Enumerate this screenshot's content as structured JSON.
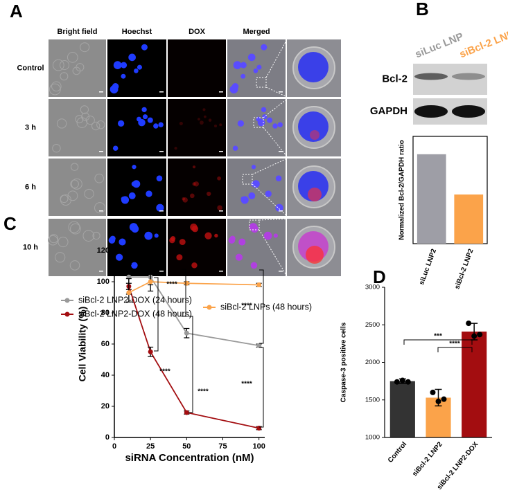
{
  "figure": {
    "panel_labels": [
      "A",
      "B",
      "C",
      "D"
    ]
  },
  "microscopy": {
    "columns": [
      "Bright field",
      "Hoechst",
      "DOX",
      "Merged"
    ],
    "rows": [
      "Control",
      "3 h",
      "6 h",
      "10 h"
    ]
  },
  "blot": {
    "lanes": [
      "siLuc LNP",
      "siBcl-2 LNP"
    ],
    "bands": [
      "Bcl-2",
      "GAPDH"
    ]
  },
  "chart_data": [
    {
      "type": "bar",
      "ylabel": "Normalized Bcl-2/GAPDH ratio",
      "categories": [
        "siLuc LNP2",
        "siBcl-2 LNP2"
      ],
      "values": [
        1.0,
        0.55
      ],
      "colors": [
        "#9e9ea6",
        "#fba34a"
      ],
      "ylim": [
        0,
        1.2
      ]
    },
    {
      "type": "line",
      "xlabel": "siRNA Concentration (nM)",
      "ylabel": "Cell Viability (%)",
      "x": [
        10,
        25,
        50,
        100
      ],
      "series": [
        {
          "name": "siBcl-2 LNP2-DOX (24 hours)",
          "color": "#9a9a9a",
          "values": [
            103,
            103,
            67,
            59
          ],
          "errors": [
            8,
            5,
            3,
            1
          ]
        },
        {
          "name": "siBcl-2 LNP2-DOX (48 hours)",
          "color": "#a30d10",
          "values": [
            97,
            55,
            16,
            6
          ],
          "errors": [
            5,
            3,
            1,
            1
          ]
        },
        {
          "name": "siBcl-2 LNPs (48 hours)",
          "color": "#fba34a",
          "values": [
            93,
            100,
            99,
            98
          ],
          "errors": [
            6,
            6,
            1,
            1
          ]
        }
      ],
      "xlim": [
        0,
        104
      ],
      "ylim": [
        0,
        120
      ],
      "xticks": [
        0,
        25,
        50,
        75,
        100
      ],
      "yticks": [
        0,
        20,
        40,
        60,
        80,
        100,
        120
      ],
      "annotations": [
        "****",
        "****",
        "****",
        "****",
        "****"
      ]
    },
    {
      "type": "bar",
      "ylabel": "Caspase-3 positive cells",
      "categories": [
        "Control",
        "siBcl-2 LNP2",
        "siBcl-2 LNP2-DOX"
      ],
      "values": [
        1750,
        1530,
        2410
      ],
      "errors": [
        30,
        110,
        110
      ],
      "points": [
        [
          1740,
          1760,
          1740
        ],
        [
          1600,
          1480,
          1510
        ],
        [
          2520,
          2350,
          2370
        ]
      ],
      "colors": [
        "#333333",
        "#fba34a",
        "#a30d10"
      ],
      "ylim": [
        1000,
        3000
      ],
      "yticks": [
        1000,
        1500,
        2000,
        2500,
        3000
      ],
      "annotations": [
        "***",
        "****"
      ]
    }
  ]
}
